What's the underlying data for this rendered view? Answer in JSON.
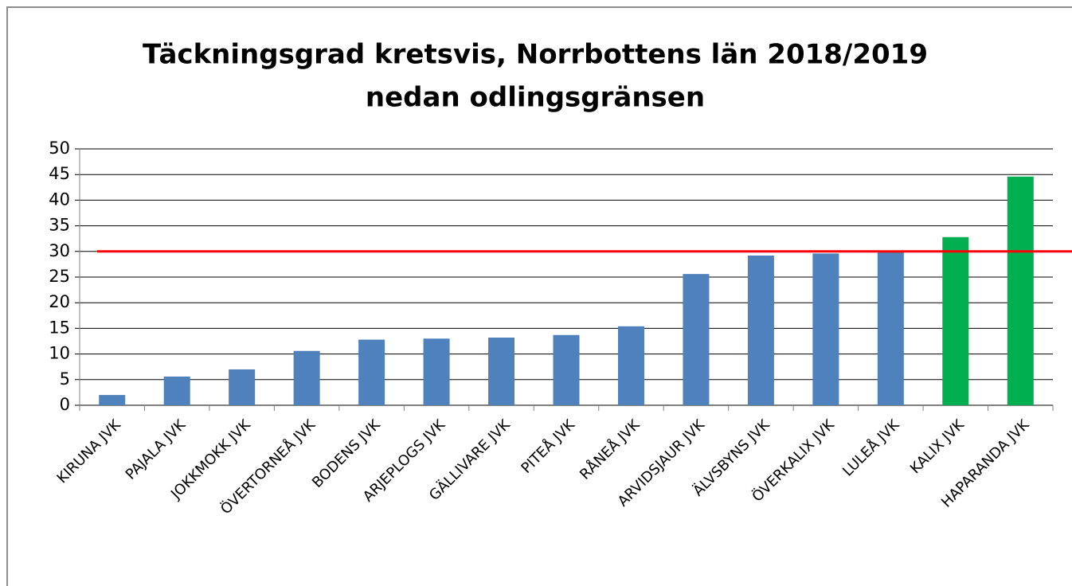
{
  "chart_data": {
    "type": "bar",
    "title": "Täckningsgrad kretsvis, Norrbottens län 2018/2019",
    "subtitle": "nedan odlingsgränsen",
    "categories": [
      "KIRUNA JVK",
      "PAJALA JVK",
      "JOKKMOKK JVK",
      "ÖVERTORNEÅ JVK",
      "BODENS JVK",
      "ARJEPLOGS JVK",
      "GÄLLIVARE JVK",
      "PITEÅ JVK",
      "RÅNEÅ JVK",
      "ARVIDSJAUR JVK",
      "ÄLVSBYNS JVK",
      "ÖVERKALIX JVK",
      "LULEÅ JVK",
      "KALIX JVK",
      "HAPARANDA JVK"
    ],
    "values": [
      2,
      5.6,
      7,
      10.6,
      12.8,
      13,
      13.2,
      13.7,
      15.4,
      25.6,
      29.2,
      29.6,
      30,
      32.8,
      44.6
    ],
    "colors": [
      "#4f81bd",
      "#4f81bd",
      "#4f81bd",
      "#4f81bd",
      "#4f81bd",
      "#4f81bd",
      "#4f81bd",
      "#4f81bd",
      "#4f81bd",
      "#4f81bd",
      "#4f81bd",
      "#4f81bd",
      "#4f81bd",
      "#00b050",
      "#00b050"
    ],
    "reference_line": {
      "value": 30,
      "color": "#ff0000"
    },
    "ylim": [
      0,
      50
    ],
    "yticks": [
      0,
      5,
      10,
      15,
      20,
      25,
      30,
      35,
      40,
      45,
      50
    ],
    "grid": true
  }
}
